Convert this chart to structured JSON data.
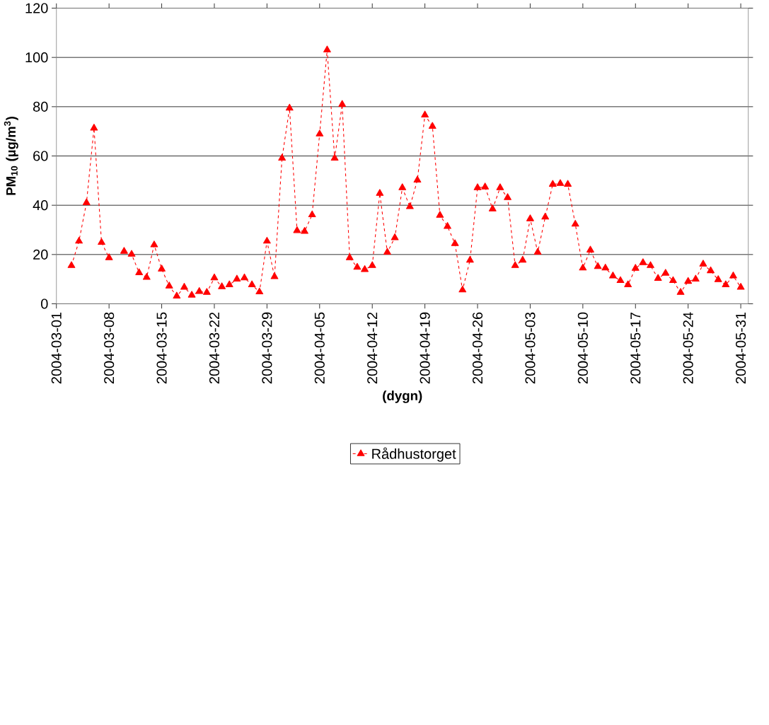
{
  "chart_data": {
    "type": "line",
    "xlabel": "(dygn)",
    "ylabel": "PM$_{10}$ (µg/m$^{3}$)",
    "x": [
      "2004-03-03",
      "2004-03-04",
      "2004-03-05",
      "2004-03-06",
      "2004-03-07",
      "2004-03-08",
      "2004-03-09",
      "2004-03-10",
      "2004-03-11",
      "2004-03-12",
      "2004-03-13",
      "2004-03-14",
      "2004-03-15",
      "2004-03-16",
      "2004-03-17",
      "2004-03-18",
      "2004-03-19",
      "2004-03-20",
      "2004-03-21",
      "2004-03-22",
      "2004-03-23",
      "2004-03-24",
      "2004-03-25",
      "2004-03-26",
      "2004-03-27",
      "2004-03-28",
      "2004-03-29",
      "2004-03-30",
      "2004-03-31",
      "2004-04-01",
      "2004-04-02",
      "2004-04-03",
      "2004-04-04",
      "2004-04-05",
      "2004-04-06",
      "2004-04-07",
      "2004-04-08",
      "2004-04-09",
      "2004-04-10",
      "2004-04-11",
      "2004-04-12",
      "2004-04-13",
      "2004-04-14",
      "2004-04-15",
      "2004-04-16",
      "2004-04-17",
      "2004-04-18",
      "2004-04-19",
      "2004-04-20",
      "2004-04-21",
      "2004-04-22",
      "2004-04-23",
      "2004-04-24",
      "2004-04-25",
      "2004-04-26",
      "2004-04-27",
      "2004-04-28",
      "2004-04-29",
      "2004-04-30",
      "2004-05-01",
      "2004-05-02",
      "2004-05-03",
      "2004-05-04",
      "2004-05-05",
      "2004-05-06",
      "2004-05-07",
      "2004-05-08",
      "2004-05-09",
      "2004-05-10",
      "2004-05-11",
      "2004-05-12",
      "2004-05-13",
      "2004-05-14",
      "2004-05-15",
      "2004-05-16",
      "2004-05-17",
      "2004-05-18",
      "2004-05-19",
      "2004-05-20",
      "2004-05-21",
      "2004-05-22",
      "2004-05-23",
      "2004-05-24",
      "2004-05-25",
      "2004-05-26",
      "2004-05-27",
      "2004-05-28",
      "2004-05-29",
      "2004-05-30",
      "2004-05-31"
    ],
    "series": [
      {
        "name": "Rådhustorget",
        "color": "#ff0000",
        "values": [
          15.5,
          25.4,
          41.0,
          71.3,
          24.9,
          18.7,
          null,
          21.3,
          20.1,
          12.6,
          10.7,
          23.9,
          14.1,
          7.2,
          3.1,
          6.7,
          3.5,
          5.0,
          4.6,
          10.5,
          6.9,
          7.7,
          10.0,
          10.5,
          7.7,
          4.8,
          25.4,
          11.0,
          59.1,
          79.4,
          29.7,
          29.4,
          36.1,
          68.9,
          103,
          59.1,
          80.9,
          18.7,
          14.8,
          13.9,
          15.5,
          44.8,
          20.9,
          26.8,
          47.1,
          39.4,
          50.2,
          76.6,
          72.0,
          35.9,
          31.4,
          24.4,
          5.6,
          17.7,
          47.1,
          47.4,
          38.5,
          47.1,
          43.1,
          15.5,
          17.7,
          34.5,
          20.9,
          35.2,
          48.5,
          48.8,
          48.5,
          32.3,
          14.5,
          21.8,
          15.1,
          14.5,
          11.3,
          9.4,
          7.7,
          14.4,
          16.7,
          15.5,
          10.3,
          12.4,
          9.4,
          4.6,
          9.1,
          10.0,
          16.1,
          13.4,
          9.8,
          7.7,
          11.3,
          6.7
        ]
      }
    ],
    "xlim": [
      "2004-03-01",
      "2004-06-01"
    ],
    "xticks": [
      "2004-03-01",
      "2004-03-08",
      "2004-03-15",
      "2004-03-22",
      "2004-03-29",
      "2004-04-05",
      "2004-04-12",
      "2004-04-19",
      "2004-04-26",
      "2004-05-03",
      "2004-05-10",
      "2004-05-17",
      "2004-05-24",
      "2004-05-31"
    ],
    "ylim": [
      0,
      120
    ],
    "yticks": [
      0,
      20,
      40,
      60,
      80,
      100,
      120
    ],
    "grid": "y",
    "legend": "bottom",
    "marker": "triangle",
    "line_style": "dashed"
  }
}
